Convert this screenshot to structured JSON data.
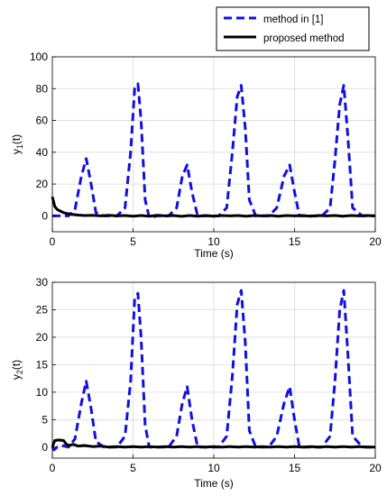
{
  "legend": {
    "entries": [
      {
        "label": "method in [1]",
        "color": "#1010e0",
        "style": "dashed"
      },
      {
        "label": "proposed method",
        "color": "#000000",
        "style": "solid"
      }
    ]
  },
  "chart_data": [
    {
      "type": "line",
      "xlabel": "Time (s)",
      "ylabel": "y",
      "ylabel_sub": "1",
      "ylabel_suffix": "(t)",
      "xlim": [
        0,
        20
      ],
      "ylim": [
        -10,
        100
      ],
      "xticks": [
        0,
        5,
        10,
        15,
        20
      ],
      "yticks": [
        0,
        20,
        40,
        60,
        80,
        100
      ],
      "grid": true,
      "series": [
        {
          "name": "method in [1]",
          "color": "#1010e0",
          "style": "dashed",
          "x": [
            0,
            1.0,
            1.4,
            1.8,
            2.1,
            2.4,
            2.7,
            3.2,
            4.0,
            4.5,
            4.85,
            5.1,
            5.3,
            5.5,
            5.75,
            6.0,
            6.5,
            7.2,
            7.7,
            8.05,
            8.35,
            8.65,
            9.0,
            9.6,
            10.3,
            10.8,
            11.15,
            11.45,
            11.7,
            11.95,
            12.2,
            12.6,
            13.4,
            13.9,
            14.35,
            14.7,
            15.0,
            15.3,
            15.9,
            16.7,
            17.2,
            17.5,
            17.8,
            18.05,
            18.3,
            18.6,
            19.2,
            20
          ],
          "y": [
            0,
            0,
            4,
            25,
            36,
            20,
            2,
            0,
            0,
            5,
            40,
            80,
            83,
            60,
            10,
            -1,
            0,
            0,
            5,
            25,
            32,
            15,
            0,
            0,
            0,
            5,
            40,
            75,
            82,
            55,
            10,
            0,
            0,
            5,
            25,
            32,
            15,
            0,
            0,
            0,
            5,
            35,
            70,
            82,
            50,
            5,
            0,
            0
          ]
        },
        {
          "name": "proposed method",
          "color": "#000000",
          "style": "solid",
          "x": [
            0,
            0.05,
            0.15,
            0.3,
            0.5,
            0.7,
            0.9,
            1.2,
            1.6,
            2.0,
            2.5,
            3.0,
            3.5,
            4.0,
            4.5,
            5.0,
            5.5,
            6.0,
            6.5,
            7.0,
            7.5,
            8.0,
            8.5,
            9.0,
            9.5,
            10.0,
            10.5,
            11.0,
            11.5,
            12.0,
            12.5,
            13.0,
            13.5,
            14.0,
            14.5,
            15.0,
            15.5,
            16.0,
            16.5,
            17.0,
            17.5,
            18.0,
            18.5,
            19.0,
            19.5,
            20.0
          ],
          "y": [
            12,
            10,
            6,
            4,
            3,
            2,
            1.5,
            1,
            0.5,
            0.2,
            0.3,
            0,
            0.3,
            0,
            0.2,
            -0.2,
            0.2,
            -0.2,
            0.3,
            0,
            0.2,
            -0.3,
            0.2,
            -0.2,
            0.2,
            -0.2,
            0.2,
            0,
            0.2,
            -0.2,
            0.2,
            0,
            0.2,
            -0.2,
            0.2,
            0,
            0.2,
            -0.2,
            0.2,
            0,
            0.2,
            -0.2,
            0.2,
            0,
            0.2,
            0
          ]
        }
      ]
    },
    {
      "type": "line",
      "xlabel": "Time (s)",
      "ylabel": "y",
      "ylabel_sub": "2",
      "ylabel_suffix": "(t)",
      "xlim": [
        0,
        20
      ],
      "ylim": [
        -2,
        30
      ],
      "xticks": [
        0,
        5,
        10,
        15,
        20
      ],
      "yticks": [
        0,
        5,
        10,
        15,
        20,
        25,
        30
      ],
      "grid": true,
      "series": [
        {
          "name": "method in [1]",
          "color": "#1010e0",
          "style": "dashed",
          "x": [
            0,
            0.1,
            0.3,
            0.6,
            1.0,
            1.4,
            1.8,
            2.1,
            2.4,
            2.7,
            3.2,
            4.0,
            4.5,
            4.85,
            5.1,
            5.3,
            5.5,
            5.75,
            6.0,
            6.5,
            7.2,
            7.7,
            8.05,
            8.35,
            8.65,
            9.0,
            9.6,
            10.3,
            10.8,
            11.15,
            11.45,
            11.7,
            11.95,
            12.2,
            12.6,
            13.4,
            13.9,
            14.35,
            14.7,
            15.0,
            15.3,
            15.9,
            16.7,
            17.2,
            17.5,
            17.8,
            18.05,
            18.3,
            18.6,
            19.2,
            20
          ],
          "y": [
            0,
            -0.5,
            0,
            0.3,
            0,
            1.5,
            8,
            12,
            7,
            1,
            0,
            0,
            2,
            12,
            27,
            28,
            20,
            4,
            0,
            0,
            0,
            2,
            8,
            11,
            5,
            0,
            0,
            0,
            2,
            13,
            26,
            28.5,
            19,
            3,
            0,
            0,
            2,
            8,
            11,
            5,
            0,
            0,
            0,
            2,
            12,
            25,
            28.5,
            17,
            2,
            0,
            0
          ]
        },
        {
          "name": "proposed method",
          "color": "#000000",
          "style": "solid",
          "x": [
            0,
            0.15,
            0.4,
            0.7,
            0.85,
            1.0,
            1.3,
            1.6,
            2.0,
            2.5,
            3.0,
            3.5,
            4.0,
            4.5,
            5.0,
            5.5,
            6.0,
            6.5,
            7.0,
            7.5,
            8.0,
            8.5,
            9.0,
            9.5,
            10.0,
            10.5,
            11.0,
            11.5,
            12.0,
            12.5,
            13.0,
            13.5,
            14.0,
            14.5,
            15.0,
            15.5,
            16.0,
            16.5,
            17.0,
            17.5,
            18.0,
            18.5,
            19.0,
            19.5,
            20.0
          ],
          "y": [
            0,
            1.2,
            1.3,
            1.2,
            0.6,
            0.3,
            0.5,
            0.2,
            0.3,
            0.1,
            0.2,
            0,
            0.1,
            0,
            0.1,
            0,
            0.1,
            0,
            0.1,
            0,
            0.1,
            0,
            0.1,
            0,
            0.1,
            0,
            0.1,
            0,
            0.1,
            0,
            0.1,
            0,
            0.1,
            0,
            0.1,
            0,
            0.1,
            0,
            0.1,
            0,
            0.1,
            0,
            0.1,
            0,
            0
          ]
        }
      ]
    }
  ]
}
